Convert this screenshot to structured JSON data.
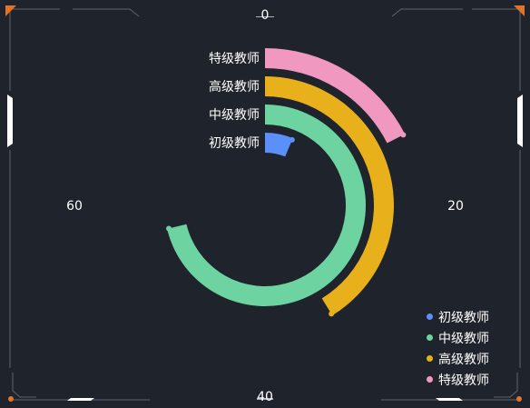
{
  "colors": {
    "background": "#1f232b",
    "frame": "#5d6470",
    "accent_orange": "#e2742a",
    "accent_white": "#ffffff"
  },
  "chart_data": {
    "type": "polar-bar",
    "title": "",
    "angle_axis": {
      "min": 0,
      "max": 80,
      "start_angle_deg": 90,
      "clockwise": true,
      "tick_labels": [
        "0",
        "20",
        "40",
        "60"
      ]
    },
    "categories": [
      "初级教师",
      "中级教师",
      "高级教师",
      "特级教师"
    ],
    "series": [
      {
        "name": "初级教师",
        "color": "#5b8ff9",
        "value": 5
      },
      {
        "name": "中级教师",
        "color": "#6dd3a0",
        "value": 57
      },
      {
        "name": "高级教师",
        "color": "#e8b11b",
        "value": 33
      },
      {
        "name": "特级教师",
        "color": "#f098c0",
        "value": 14
      }
    ],
    "legend": {
      "position": "bottom-right",
      "items": [
        "初级教师",
        "中级教师",
        "高级教师",
        "特级教师"
      ]
    },
    "grid": false
  }
}
